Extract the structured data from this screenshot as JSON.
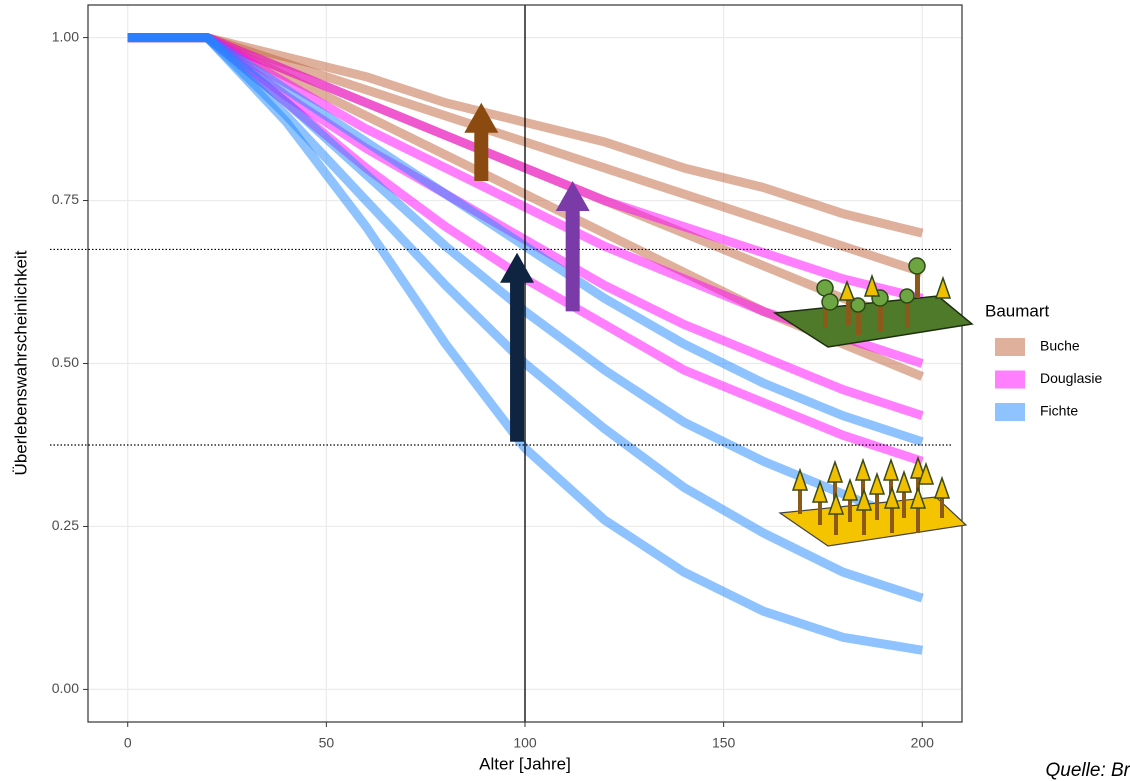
{
  "chart_data": {
    "type": "line",
    "xlabel": "Alter [Jahre]",
    "ylabel": "Überlebenswahrscheinlichkeit",
    "legend_title": "Baumart",
    "source": "Quelle: Br",
    "x": [
      0,
      20,
      40,
      60,
      80,
      100,
      120,
      140,
      160,
      180,
      200
    ],
    "xlim": [
      -10,
      210
    ],
    "xticks": [
      0,
      50,
      100,
      150,
      200
    ],
    "ylim": [
      -0.05,
      1.05
    ],
    "yticks": [
      {
        "value": 0,
        "label": "0.00"
      },
      {
        "value": 0.25,
        "label": "0.25"
      },
      {
        "value": 0.5,
        "label": "0.50"
      },
      {
        "value": 0.75,
        "label": "0.75"
      },
      {
        "value": 1,
        "label": "1.00"
      }
    ],
    "grid": true,
    "legend": "right",
    "series": [
      {
        "name": "Buche",
        "color": "#c0623a",
        "values": [
          [
            1,
            1,
            0.97,
            0.94,
            0.9,
            0.87,
            0.84,
            0.8,
            0.77,
            0.73,
            0.7
          ],
          [
            1,
            1,
            0.96,
            0.92,
            0.88,
            0.84,
            0.8,
            0.76,
            0.72,
            0.68,
            0.64
          ],
          [
            1,
            1,
            0.95,
            0.9,
            0.85,
            0.8,
            0.75,
            0.7,
            0.65,
            0.6,
            0.56
          ],
          [
            1,
            1,
            0.94,
            0.88,
            0.82,
            0.76,
            0.7,
            0.64,
            0.58,
            0.53,
            0.48
          ]
        ]
      },
      {
        "name": "Douglasie",
        "color": "#ff00ff",
        "values": [
          [
            1,
            1,
            0.95,
            0.9,
            0.85,
            0.8,
            0.75,
            0.71,
            0.67,
            0.63,
            0.6
          ],
          [
            1,
            1,
            0.93,
            0.86,
            0.8,
            0.74,
            0.68,
            0.63,
            0.58,
            0.54,
            0.5
          ],
          [
            1,
            1,
            0.91,
            0.83,
            0.76,
            0.69,
            0.62,
            0.56,
            0.51,
            0.46,
            0.42
          ],
          [
            1,
            1,
            0.9,
            0.8,
            0.71,
            0.63,
            0.56,
            0.49,
            0.44,
            0.39,
            0.35
          ]
        ]
      },
      {
        "name": "Fichte",
        "color": "#1e88ff",
        "values": [
          [
            1,
            1,
            0.92,
            0.84,
            0.76,
            0.68,
            0.6,
            0.53,
            0.47,
            0.42,
            0.38
          ],
          [
            1,
            1,
            0.9,
            0.79,
            0.68,
            0.58,
            0.49,
            0.41,
            0.35,
            0.3,
            0.25
          ],
          [
            1,
            1,
            0.88,
            0.75,
            0.62,
            0.5,
            0.4,
            0.31,
            0.24,
            0.18,
            0.14
          ],
          [
            1,
            1,
            0.87,
            0.71,
            0.53,
            0.37,
            0.26,
            0.18,
            0.12,
            0.08,
            0.06
          ]
        ]
      }
    ],
    "vline": 100,
    "hlines": [
      0.675,
      0.375
    ],
    "arrows": [
      {
        "x": 89,
        "y": [
          0.78,
          0.9
        ],
        "color": "#8b4a0f"
      },
      {
        "x": 112,
        "y": [
          0.58,
          0.78
        ],
        "color": "#7a3aa8"
      },
      {
        "x": 98,
        "y": [
          0.38,
          0.67
        ],
        "color": "#0f2440"
      }
    ]
  }
}
